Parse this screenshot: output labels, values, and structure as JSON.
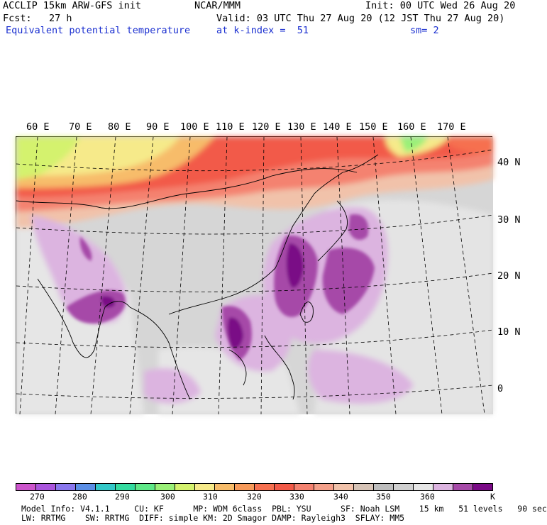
{
  "header": {
    "left_line1": "ACCLIP 15km ARW-GFS init",
    "left_line2": "Fcst:   27 h",
    "subtitle": "Equivalent potential temperature",
    "center_line1": "NCAR/MMM",
    "valid_line": "Valid: 03 UTC Thu 27 Aug 20 (12 JST Thu 27 Aug 20)",
    "level_line": "at k-index =  51",
    "init_line": "Init: 00 UTC Wed 26 Aug 20",
    "smooth_line": "sm= 2"
  },
  "map": {
    "lon_labels": [
      "60 E",
      "70 E",
      "80 E",
      "90 E",
      "100 E",
      "110 E",
      "120 E",
      "130 E",
      "140 E",
      "150 E",
      "160 E",
      "170 E"
    ],
    "lat_labels": [
      "40 N",
      "30 N",
      "20 N",
      "10 N",
      "0"
    ],
    "colors": {
      "land_gray": "#c9c9c9",
      "sea_light": "#e6e6e6",
      "lavender": "#dcb4e0",
      "purple_mid": "#9a3ea8",
      "purple_dark": "#7a0a86",
      "salmon": "#f4a08a",
      "red": "#f25a48",
      "orange": "#f7bc6a",
      "yellow": "#f6ea8a",
      "lime": "#bff07a"
    }
  },
  "colorbar": {
    "unit": "K",
    "tick_labels": [
      "270",
      "280",
      "290",
      "300",
      "310",
      "320",
      "330",
      "340",
      "350",
      "360"
    ],
    "colors": [
      "#cc55cc",
      "#aa55dd",
      "#8a77ee",
      "#5b8fe6",
      "#33c8c8",
      "#34dba0",
      "#5fe888",
      "#9af078",
      "#d4f26e",
      "#f6ea8a",
      "#f7bc6a",
      "#f79a5a",
      "#f67050",
      "#f25a48",
      "#f48270",
      "#f4a08a",
      "#f1c2aa",
      "#d6c3b6",
      "#bdbdbd",
      "#d0d0d0",
      "#e6e6e6",
      "#dcb4e0",
      "#a64aa8",
      "#7a0a86"
    ]
  },
  "footer": {
    "line1": "Model Info: V4.1.1     CU: KF      MP: WDM 6class  PBL: YSU      SF: Noah LSM    15 km   51 levels   90 sec",
    "line2": "LW: RRTMG    SW: RRTMG  DIFF: simple KM: 2D Smagor DAMP: Rayleigh3  SFLAY: MM5"
  }
}
